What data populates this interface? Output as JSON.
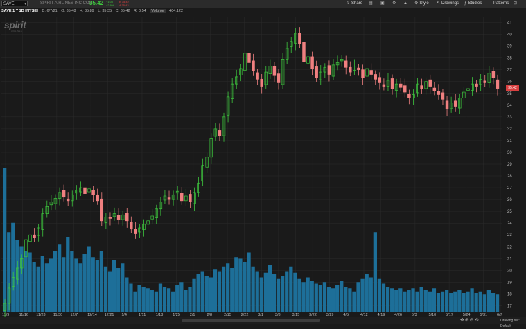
{
  "header": {
    "symbol": "SAVE",
    "company": "SPIRIT AIRLINES INC COM",
    "last": "35.42",
    "change_lines": [
      "+1.00",
      "+2.9%"
    ],
    "bidask_lines": [
      "B 35.42",
      "A 35.43"
    ],
    "toolbar": {
      "share": "Share",
      "style": "Style",
      "drawings": "Drawings",
      "studies": "Studies",
      "patterns": "Patterns"
    }
  },
  "info": {
    "title": "SAVE 1 Y 1D [NYSE]",
    "date": "D: 6/7/21",
    "open": "O: 35.48",
    "high": "H: 35.89",
    "low": "L: 35.35",
    "close": "C: 35.42",
    "range": "R: 0.54",
    "volume_label": "Volume",
    "volume_value": "404,122"
  },
  "logo": {
    "text": "spirit",
    "sub": "AIRLINES"
  },
  "last_price_tag": "35.42",
  "status": {
    "drawing_set": "Drawing set: Default"
  },
  "colors": {
    "up": "#3ec73e",
    "down": "#f08080",
    "volume": "#1d6f99",
    "grid": "#2c2c2c",
    "text": "#bdbdbd"
  },
  "chart_data": {
    "type": "candlestick",
    "title": "SAVE 1 Y 1D [NYSE]",
    "y_ticks": [
      17,
      18,
      19,
      20,
      21,
      22,
      23,
      24,
      25,
      26,
      27,
      28,
      29,
      30,
      31,
      32,
      33,
      34,
      35,
      36,
      37,
      38,
      39,
      40,
      41
    ],
    "ylim": [
      16.5,
      41.5
    ],
    "x_labels": [
      "11/9",
      "11/16",
      "11/23",
      "11/30",
      "12/7",
      "12/14",
      "12/21",
      "1/4",
      "1/11",
      "1/18",
      "1/25",
      "2/1",
      "2/8",
      "2/15",
      "2/22",
      "3/1",
      "3/8",
      "3/15",
      "3/22",
      "3/29",
      "4/5",
      "4/12",
      "4/19",
      "4/26",
      "5/3",
      "5/10",
      "5/17",
      "5/24",
      "5/31",
      "6/7"
    ],
    "series": [
      {
        "name": "Price",
        "close": [
          17.2,
          18.5,
          19.4,
          20.2,
          21.0,
          22.6,
          23.0,
          22.8,
          23.6,
          24.8,
          25.4,
          25.8,
          26.1,
          26.6,
          26.2,
          25.9,
          26.4,
          26.8,
          27.0,
          26.5,
          26.9,
          26.4,
          25.9,
          24.2,
          24.5,
          24.4,
          24.8,
          24.3,
          24.7,
          24.2,
          23.5,
          23.1,
          23.6,
          23.9,
          24.2,
          24.6,
          25.2,
          25.8,
          26.3,
          26.0,
          26.4,
          26.7,
          25.9,
          26.3,
          25.8,
          26.6,
          27.4,
          28.9,
          29.6,
          31.2,
          32.0,
          31.4,
          33.0,
          34.7,
          35.8,
          36.4,
          37.1,
          38.4,
          37.6,
          36.9,
          36.2,
          35.6,
          36.8,
          37.3,
          36.5,
          35.9,
          37.9,
          38.8,
          39.4,
          40.1,
          39.2,
          37.7,
          38.1,
          37.1,
          36.3,
          36.8,
          37.2,
          36.6,
          37.4,
          37.6,
          37.9,
          37.2,
          36.8,
          37.3,
          37.0,
          36.3,
          37.1,
          36.6,
          36.2,
          35.9,
          35.6,
          36.1,
          35.4,
          35.8,
          35.5,
          35.1,
          34.6,
          34.9,
          35.8,
          35.4,
          36.0,
          35.6,
          35.2,
          34.9,
          34.5,
          33.7,
          34.2,
          33.9,
          34.6,
          35.1,
          35.4,
          35.8,
          35.6,
          36.2,
          35.9,
          36.7,
          36.3,
          35.42
        ]
      },
      {
        "name": "Volume",
        "values": [
          9.2,
          5.1,
          5.7,
          4.6,
          4.2,
          3.9,
          3.8,
          3.2,
          2.9,
          3.6,
          3.1,
          3.4,
          3.9,
          4.3,
          3.5,
          4.8,
          3.9,
          3.4,
          3.1,
          3.7,
          4.2,
          3.5,
          3.3,
          3.9,
          2.9,
          2.6,
          3.3,
          2.8,
          3.1,
          2.2,
          1.8,
          1.3,
          1.7,
          1.6,
          1.5,
          1.4,
          1.3,
          1.8,
          1.6,
          1.5,
          1.3,
          1.7,
          1.9,
          1.4,
          1.6,
          2.1,
          2.4,
          2.6,
          2.3,
          2.2,
          2.7,
          2.6,
          2.9,
          3.1,
          2.8,
          3.5,
          3.4,
          3.2,
          3.8,
          2.9,
          2.6,
          2.2,
          2.5,
          3.0,
          2.4,
          2.1,
          2.3,
          2.6,
          2.9,
          2.5,
          2.1,
          1.9,
          2.2,
          2.0,
          1.8,
          1.7,
          1.9,
          1.6,
          1.5,
          1.7,
          2.0,
          1.6,
          1.5,
          1.3,
          1.9,
          2.1,
          2.4,
          2.2,
          5.1,
          2.1,
          1.8,
          1.6,
          1.5,
          1.4,
          1.5,
          1.3,
          1.4,
          1.5,
          1.3,
          1.6,
          1.4,
          1.3,
          1.5,
          1.2,
          1.3,
          1.4,
          1.2,
          1.3,
          1.4,
          1.2,
          1.3,
          1.5,
          1.2,
          1.3,
          1.1,
          1.4,
          1.2,
          1.1
        ]
      }
    ],
    "grid": true
  }
}
